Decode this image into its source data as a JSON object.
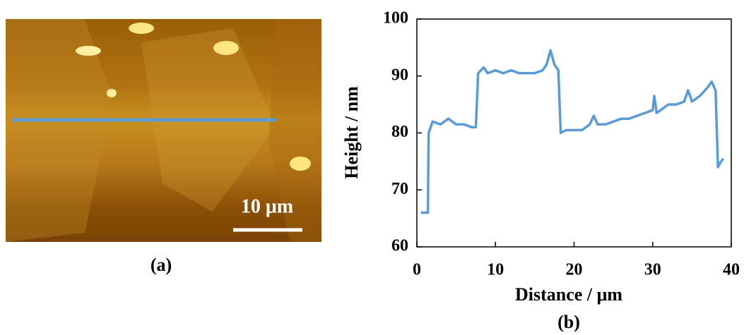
{
  "chart_data": {
    "type": "line",
    "x_label": "Distance / μm",
    "y_label": "Height / nm",
    "caption": "(b)",
    "x": [
      0.5,
      1.2,
      1.4,
      1.5,
      2,
      3,
      4,
      5,
      6,
      7,
      7.5,
      7.8,
      8.5,
      9,
      10,
      11,
      12,
      13,
      14,
      15,
      16,
      16.5,
      17,
      17.5,
      18,
      18.3,
      19,
      20,
      21,
      22,
      22.5,
      23,
      24,
      25,
      26,
      27,
      28,
      29,
      30,
      30.2,
      30.5,
      31,
      32,
      33,
      34,
      34.5,
      35,
      36,
      37,
      37.5,
      38,
      38.3,
      38.7,
      39
    ],
    "series": [
      {
        "color": "#5b9bd5",
        "values": [
          66,
          66,
          66,
          80,
          82,
          81.5,
          82.5,
          81.5,
          81.5,
          81,
          81,
          90.5,
          91.5,
          90.5,
          91,
          90.5,
          91,
          90.5,
          90.5,
          90.5,
          91,
          92,
          94.5,
          92,
          91,
          80,
          80.5,
          80.5,
          80.5,
          81.5,
          83,
          81.5,
          81.5,
          82,
          82.5,
          82.5,
          83,
          83.5,
          84,
          86.5,
          83.5,
          84,
          85,
          85,
          85.5,
          87.5,
          85.5,
          86.5,
          88,
          89,
          87.5,
          74,
          75,
          75.5
        ]
      }
    ],
    "xlim": [
      0,
      40
    ],
    "xticks": [
      0,
      10,
      20,
      30,
      40
    ],
    "ylim": [
      60,
      100
    ],
    "yticks": [
      60,
      70,
      80,
      90,
      100
    ]
  },
  "image_panel": {
    "scale_label": "10 μm",
    "caption": "(a)"
  }
}
